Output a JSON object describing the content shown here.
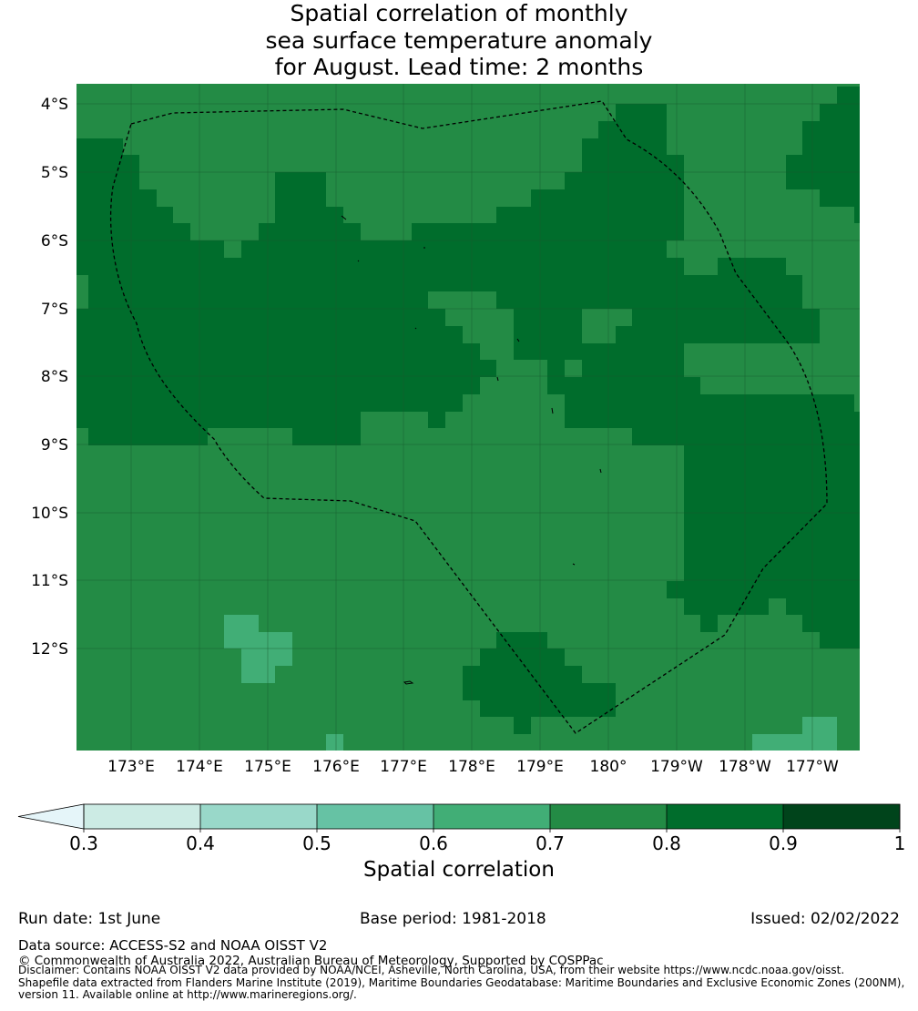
{
  "title": {
    "line1": "Spatial correlation of monthly",
    "line2": "sea surface temperature anomaly",
    "line3": "for August. Lead time: 2 months"
  },
  "map": {
    "lat_labels": [
      "4°S",
      "5°S",
      "6°S",
      "7°S",
      "8°S",
      "9°S",
      "10°S",
      "11°S",
      "12°S"
    ],
    "lon_labels": [
      "173°E",
      "174°E",
      "175°E",
      "176°E",
      "177°E",
      "178°E",
      "179°E",
      "180°",
      "179°W",
      "178°W",
      "177°W"
    ],
    "colors": {
      "c04": "#ccebe4",
      "c05": "#99d8c9",
      "c06": "#66c2a4",
      "c07": "#41ae76",
      "c08": "#238b45",
      "c09": "#006d2c",
      "c10": "#00441b",
      "under": "#e5f5f9",
      "grid": "#1a5a2e",
      "boundary": "#000000"
    }
  },
  "colorbar": {
    "tick_labels": [
      "0.3",
      "0.4",
      "0.5",
      "0.6",
      "0.7",
      "0.8",
      "0.9",
      "1"
    ],
    "label": "Spatial correlation"
  },
  "footer": {
    "run_date": "Run date: 1st June",
    "base_period": "Base period: 1981-2018",
    "issued": "Issued: 02/02/2022",
    "data_source": "Data source: ACCESS-S2 and NOAA OISST V2",
    "copyright": "© Commonwealth of Australia 2022, Australian Bureau of Meteorology, Supported by COSPPac",
    "disclaimer1": "Disclaimer: Contains NOAA OISST V2 data provided by NOAA/NCEI, Asheville, North Carolina, USA, from their website https://www.ncdc.noaa.gov/oisst.",
    "disclaimer2": "Shapefile data extracted from Flanders Marine Institute (2019), Maritime Boundaries Geodatabase: Maritime Boundaries and Exclusive Economic Zones (200NM),",
    "disclaimer3": "version 11. Available online at http://www.marineregions.org/."
  }
}
